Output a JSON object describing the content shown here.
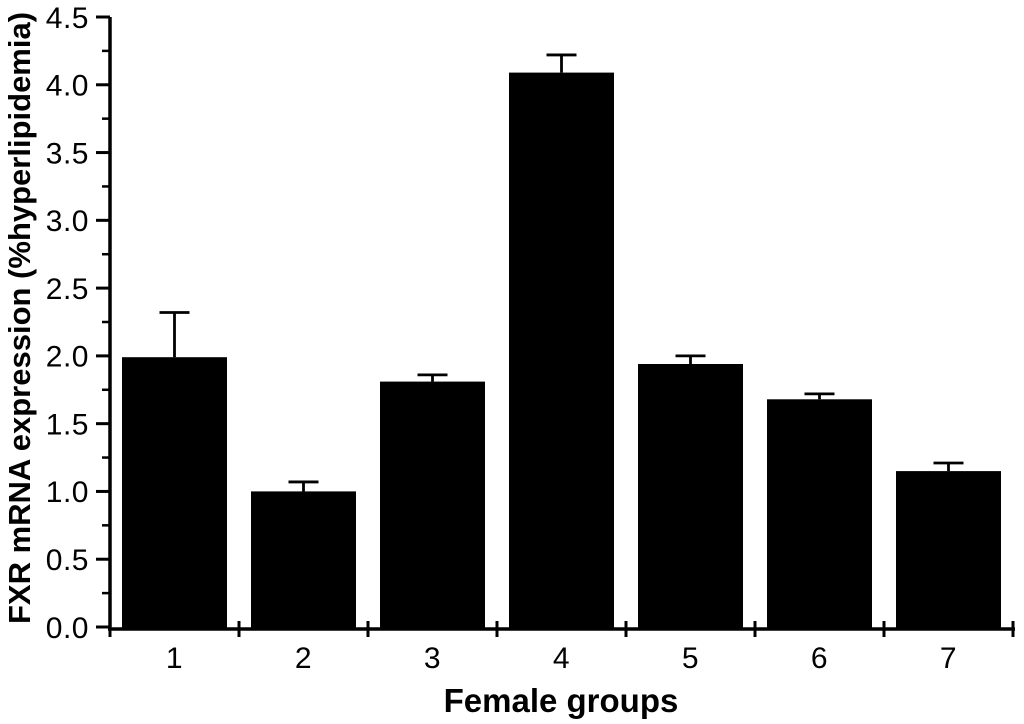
{
  "chart_data": {
    "type": "bar",
    "title": "",
    "xlabel": "Female groups",
    "ylabel": "FXR mRNA expression (%hyperlipidemia)",
    "categories": [
      "1",
      "2",
      "3",
      "4",
      "5",
      "6",
      "7"
    ],
    "series": [
      {
        "name": "FXR mRNA expression",
        "values": [
          1.99,
          1.0,
          1.81,
          4.09,
          1.94,
          1.68,
          1.15
        ],
        "errors_plus": [
          0.33,
          0.07,
          0.05,
          0.13,
          0.06,
          0.04,
          0.06
        ]
      }
    ],
    "ylim": [
      0,
      4.5
    ],
    "y_major_step": 0.5,
    "y_minor_step": 0.25,
    "y_tick_labels": [
      "0.0",
      "0.5",
      "1.0",
      "1.5",
      "2.0",
      "2.5",
      "3.0",
      "3.5",
      "4.0",
      "4.5"
    ],
    "bar_color": "#000000",
    "axis_color": "#000000",
    "background_color": "#ffffff",
    "grid": false,
    "legend": null,
    "error_bar_style": "caps-up"
  }
}
